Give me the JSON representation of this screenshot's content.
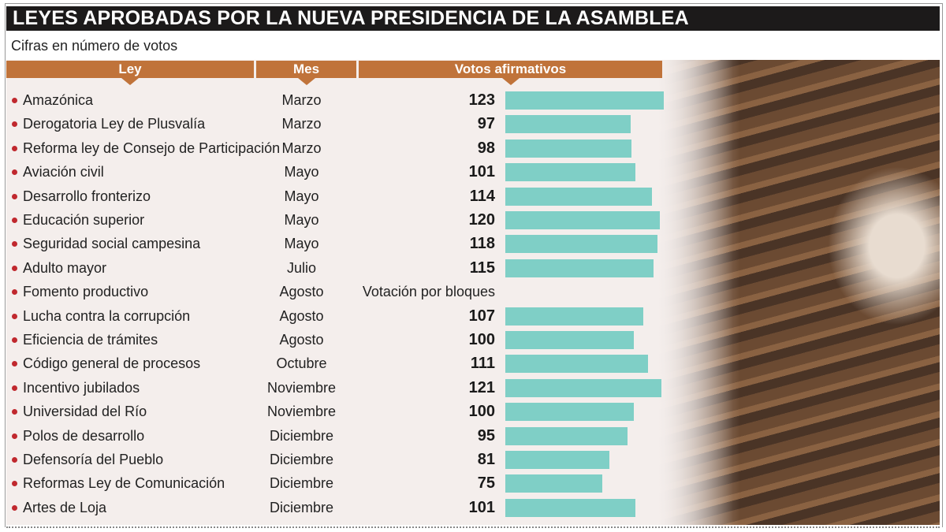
{
  "title": "LEYES APROBADAS POR LA NUEVA PRESIDENCIA DE LA ASAMBLEA",
  "subtitle": "Cifras en número de votos",
  "colors": {
    "header": "#c0733a",
    "bar": "#7fcfc6",
    "bullet": "#c0282e",
    "title_bg": "#1c1a1a"
  },
  "chart_data": {
    "type": "bar",
    "orientation": "horizontal",
    "title": "LEYES APROBADAS POR LA NUEVA PRESIDENCIA DE LA ASAMBLEA",
    "subtitle": "Cifras en número de votos",
    "columns": [
      "Ley",
      "Mes",
      "Votos afirmativos"
    ],
    "xlim": [
      0,
      123
    ],
    "rows": [
      {
        "ley": "Amazónica",
        "mes": "Marzo",
        "votos": 123
      },
      {
        "ley": "Derogatoria Ley de Plusvalía",
        "mes": "Marzo",
        "votos": 97
      },
      {
        "ley": "Reforma ley de Consejo de Participación",
        "mes": "Marzo",
        "votos": 98
      },
      {
        "ley": "Aviación civil",
        "mes": "Mayo",
        "votos": 101
      },
      {
        "ley": "Desarrollo fronterizo",
        "mes": "Mayo",
        "votos": 114
      },
      {
        "ley": "Educación superior",
        "mes": "Mayo",
        "votos": 120
      },
      {
        "ley": "Seguridad social campesina",
        "mes": "Mayo",
        "votos": 118
      },
      {
        "ley": "Adulto mayor",
        "mes": "Julio",
        "votos": 115
      },
      {
        "ley": "Fomento productivo",
        "mes": "Agosto",
        "votos": null,
        "nota": "Votación por bloques"
      },
      {
        "ley": "Lucha contra la corrupción",
        "mes": "Agosto",
        "votos": 107
      },
      {
        "ley": "Eficiencia de trámites",
        "mes": "Agosto",
        "votos": 100
      },
      {
        "ley": "Código general de procesos",
        "mes": "Octubre",
        "votos": 111
      },
      {
        "ley": "Incentivo jubilados",
        "mes": "Noviembre",
        "votos": 121
      },
      {
        "ley": "Universidad del Río",
        "mes": "Noviembre",
        "votos": 100
      },
      {
        "ley": "Polos de desarrollo",
        "mes": "Diciembre",
        "votos": 95
      },
      {
        "ley": "Defensoría del Pueblo",
        "mes": "Diciembre",
        "votos": 81
      },
      {
        "ley": "Reformas Ley de Comunicación",
        "mes": "Diciembre",
        "votos": 75
      },
      {
        "ley": "Artes de Loja",
        "mes": "Diciembre",
        "votos": 101
      }
    ]
  }
}
